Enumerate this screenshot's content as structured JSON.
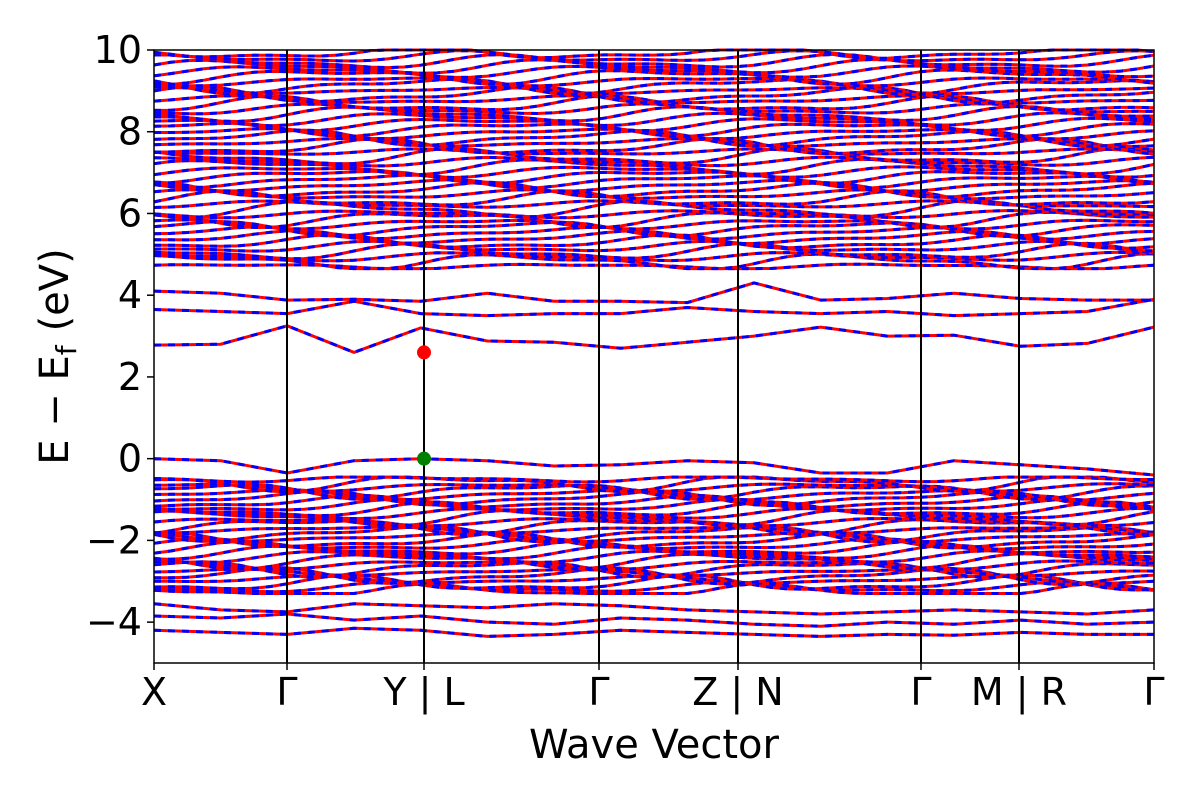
{
  "chart_data": {
    "type": "line",
    "xlabel": "Wave Vector",
    "ylabel_main": "E − E",
    "ylabel_sub": "f",
    "ylabel_unit": "(eV)",
    "ylim": [
      -5,
      10
    ],
    "yticks": [
      -4,
      -2,
      0,
      2,
      4,
      6,
      8,
      10
    ],
    "ytick_labels": [
      "−4",
      "−2",
      "0",
      "2",
      "4",
      "6",
      "8",
      "10"
    ],
    "kpath": [
      "X",
      "Γ",
      "Y | L",
      "Γ",
      "Z | N",
      "Γ",
      "M | R",
      "Γ"
    ],
    "kpath_fractions": [
      0.0,
      0.133,
      0.27,
      0.445,
      0.584,
      0.767,
      0.865,
      1.0
    ],
    "grid": false,
    "series": [
      {
        "color": "#ff0000",
        "line_style": "solid",
        "lines": [
          {
            "band": "cb1",
            "y": [
              2.78,
              2.8,
              3.25,
              2.6,
              3.2,
              2.88,
              2.85,
              2.7,
              2.85,
              3.0,
              3.22,
              3.0,
              3.02,
              2.75,
              2.82,
              3.22
            ]
          },
          {
            "band": "cb2",
            "y": [
              3.65,
              3.6,
              3.55,
              3.85,
              3.55,
              3.5,
              3.55,
              3.55,
              3.7,
              3.6,
              3.55,
              3.6,
              3.5,
              3.55,
              3.6,
              3.9
            ]
          },
          {
            "band": "cb3",
            "y": [
              4.1,
              4.05,
              3.88,
              3.9,
              3.85,
              4.05,
              3.85,
              3.85,
              3.82,
              4.3,
              3.88,
              3.92,
              4.05,
              3.92,
              3.88,
              3.88
            ]
          },
          {
            "band": "vb1",
            "y": [
              0.0,
              -0.05,
              -0.35,
              -0.05,
              0.0,
              -0.05,
              -0.18,
              -0.15,
              -0.05,
              -0.1,
              -0.35,
              -0.35,
              -0.05,
              -0.15,
              -0.25,
              -0.4
            ]
          },
          {
            "band": "vb_deep1",
            "y": [
              -3.55,
              -3.7,
              -3.75,
              -3.55,
              -3.6,
              -3.65,
              -3.55,
              -3.6,
              -3.7,
              -3.75,
              -3.8,
              -3.75,
              -3.7,
              -3.75,
              -3.8,
              -3.7
            ]
          },
          {
            "band": "vb_deep2",
            "y": [
              -3.85,
              -3.9,
              -3.8,
              -3.95,
              -3.85,
              -4.0,
              -4.05,
              -3.9,
              -3.95,
              -4.05,
              -4.1,
              -4.0,
              -4.05,
              -3.95,
              -4.05,
              -4.0
            ]
          },
          {
            "band": "vb_deep3",
            "y": [
              -4.2,
              -4.25,
              -4.3,
              -4.15,
              -4.2,
              -4.35,
              -4.3,
              -4.2,
              -4.25,
              -4.3,
              -4.35,
              -4.3,
              -4.32,
              -4.25,
              -4.3,
              -4.3
            ]
          }
        ]
      },
      {
        "color": "#0000ff",
        "line_style": "dashed",
        "lines": [
          {
            "band": "cb1",
            "y": [
              2.78,
              2.8,
              3.25,
              2.6,
              3.2,
              2.88,
              2.85,
              2.7,
              2.85,
              3.0,
              3.22,
              3.0,
              3.02,
              2.75,
              2.82,
              3.22
            ]
          },
          {
            "band": "cb2",
            "y": [
              3.65,
              3.6,
              3.55,
              3.85,
              3.55,
              3.5,
              3.55,
              3.55,
              3.7,
              3.6,
              3.55,
              3.6,
              3.5,
              3.55,
              3.6,
              3.9
            ]
          },
          {
            "band": "cb3",
            "y": [
              4.1,
              4.05,
              3.88,
              3.9,
              3.85,
              4.05,
              3.85,
              3.85,
              3.82,
              4.3,
              3.88,
              3.92,
              4.05,
              3.92,
              3.88,
              3.88
            ]
          },
          {
            "band": "vb1",
            "y": [
              0.0,
              -0.05,
              -0.35,
              -0.05,
              0.0,
              -0.05,
              -0.18,
              -0.15,
              -0.05,
              -0.1,
              -0.35,
              -0.35,
              -0.05,
              -0.15,
              -0.25,
              -0.4
            ]
          },
          {
            "band": "vb_deep1",
            "y": [
              -3.55,
              -3.7,
              -3.75,
              -3.55,
              -3.6,
              -3.65,
              -3.55,
              -3.6,
              -3.7,
              -3.75,
              -3.8,
              -3.75,
              -3.7,
              -3.75,
              -3.8,
              -3.7
            ]
          },
          {
            "band": "vb_deep2",
            "y": [
              -3.85,
              -3.9,
              -3.8,
              -3.95,
              -3.85,
              -4.0,
              -4.05,
              -3.9,
              -3.95,
              -4.05,
              -4.1,
              -4.0,
              -4.05,
              -3.95,
              -4.05,
              -4.0
            ]
          },
          {
            "band": "vb_deep3",
            "y": [
              -4.2,
              -4.25,
              -4.3,
              -4.15,
              -4.2,
              -4.35,
              -4.3,
              -4.2,
              -4.25,
              -4.3,
              -4.35,
              -4.3,
              -4.32,
              -4.25,
              -4.3,
              -4.3
            ]
          }
        ]
      }
    ],
    "dense_bands": [
      {
        "region": "conduction",
        "y_min": 4.65,
        "y_max": 10.0,
        "count": 46
      },
      {
        "region": "valence",
        "y_min": -3.3,
        "y_max": -0.45,
        "count": 30
      }
    ],
    "markers": [
      {
        "name": "CBM",
        "x_fraction": 0.27,
        "y": 2.6,
        "color": "#ff0000"
      },
      {
        "name": "VBM",
        "x_fraction": 0.27,
        "y": 0.0,
        "color": "#008000"
      }
    ]
  }
}
